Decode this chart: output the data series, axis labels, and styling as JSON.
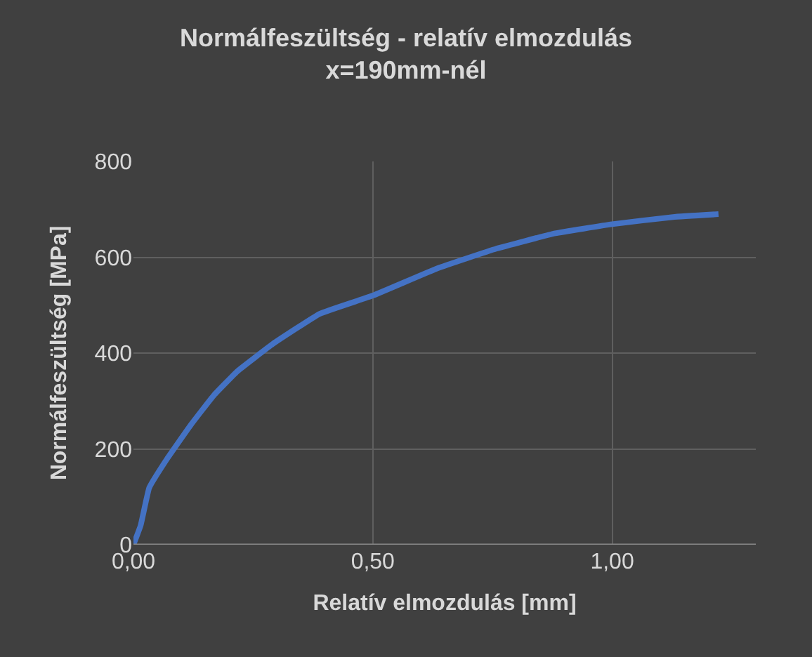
{
  "chart_data": {
    "type": "line",
    "title": "Normálfeszültség - relatív elmozdulás\nx=190mm-nél",
    "xlabel": "Relatív elmozdulás [mm]",
    "ylabel": "Normálfeszültség [MPa]",
    "x": [
      0,
      0.015,
      0.033,
      0.07,
      0.119,
      0.168,
      0.217,
      0.291,
      0.389,
      0.5,
      0.635,
      0.758,
      0.881,
      1.0,
      1.127,
      1.222
    ],
    "series": [
      {
        "color": "#4472c4",
        "values": [
          0,
          40,
          119,
          179,
          249,
          312,
          362,
          419,
          482,
          520,
          577,
          618,
          650,
          669,
          684,
          690
        ]
      }
    ],
    "xlim": [
      0,
      1.3
    ],
    "xticks": [
      {
        "value": 0,
        "label": "0,00"
      },
      {
        "value": 0.5,
        "label": "0,50"
      },
      {
        "value": 1.0,
        "label": "1,00"
      }
    ],
    "ylim": [
      0,
      800
    ],
    "yticks": [
      0,
      200,
      400,
      600,
      800
    ],
    "grid": true,
    "legend": false,
    "marker": "none",
    "line_style": "solid"
  }
}
